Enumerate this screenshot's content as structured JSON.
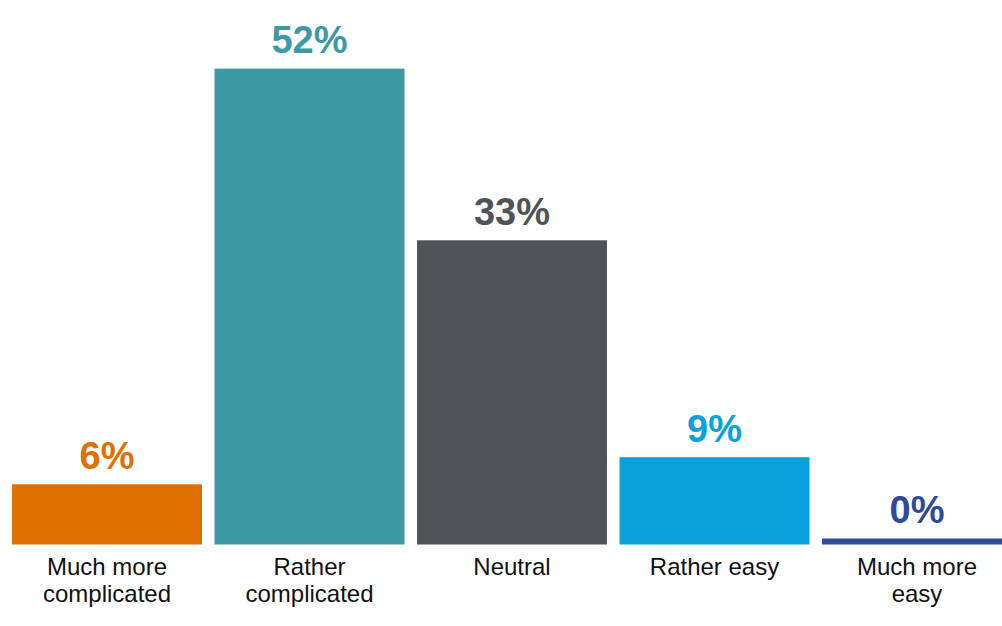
{
  "chart_data": {
    "type": "bar",
    "categories": [
      "Much more complicated",
      "Rather complicated",
      "Neutral",
      "Rather easy",
      "Much more easy"
    ],
    "values": [
      6,
      52,
      33,
      9,
      0
    ],
    "value_labels": [
      "6%",
      "52%",
      "33%",
      "9%",
      "0%"
    ],
    "colors": [
      "#e07000",
      "#3d9aa4",
      "#505457",
      "#0aa2dc",
      "#2e4b9b"
    ],
    "ylim": [
      0,
      55
    ],
    "data_labels": true,
    "tick_labels": "x",
    "grid": false
  }
}
